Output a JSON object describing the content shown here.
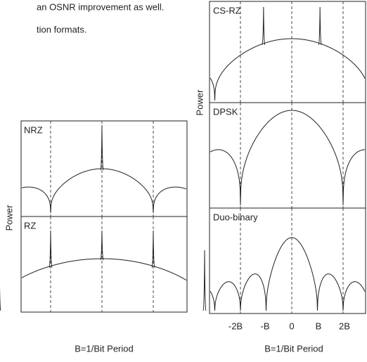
{
  "text": {
    "lines": [
      "an OSNR improvement as well.",
      "tion formats."
    ]
  },
  "figure_left": {
    "panels": [
      "NRZ",
      "RZ"
    ],
    "y_label": "Power",
    "x_label": "B=1/Bit Period"
  },
  "figure_right": {
    "panels": [
      "CS-RZ",
      "DPSK",
      "Duo-binary"
    ],
    "y_label": "Power",
    "ticks": [
      "-2B",
      "-B",
      "0",
      "B",
      "2B"
    ],
    "x_label": "B=1/Bit Period"
  }
}
